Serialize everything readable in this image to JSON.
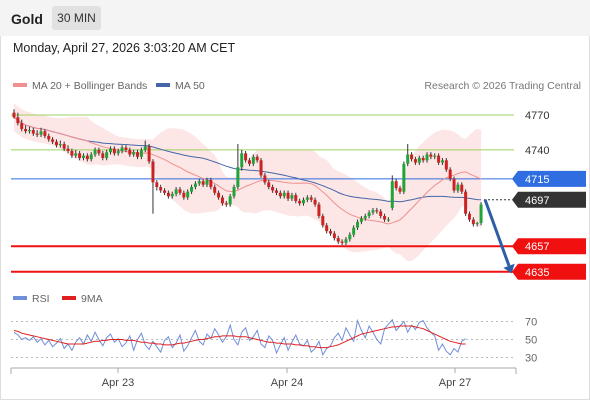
{
  "header": {
    "instrument": "Gold",
    "timeframe": "30 MIN",
    "datetime": "Monday, April 27, 2026 3:03:20 AM CET"
  },
  "legend": {
    "ma20_label": "MA 20 + Bollinger Bands",
    "ma50_label": "MA 50",
    "credit": "Research © 2026 Trading Central",
    "rsi_label": "RSI",
    "rsi9_label": "9MA"
  },
  "colors": {
    "up": "#22a33a",
    "down": "#cc2222",
    "ma20": "#ef8f8f",
    "ma50": "#4466a8",
    "band": "#fde3e3",
    "resistance": "#9fd15f",
    "pivot": "#2f6de0",
    "support": "#f01010",
    "current": "#333333",
    "arrow": "#2d5fa6",
    "rsi": "#6f8fd8",
    "rsi_ma": "#e02020"
  },
  "chart_data": [
    {
      "type": "candlestick",
      "title": "Gold",
      "timeframe": "30 MIN",
      "x_tick_labels": [
        "Apr 23",
        "Apr 24",
        "Apr 27"
      ],
      "y_range": [
        4628,
        4780
      ],
      "price_levels": [
        {
          "label": "4770",
          "value": 4770,
          "kind": "resistance"
        },
        {
          "label": "4740",
          "value": 4740,
          "kind": "resistance"
        },
        {
          "label": "4715",
          "value": 4715,
          "kind": "pivot"
        },
        {
          "label": "4697",
          "value": 4697,
          "kind": "current"
        },
        {
          "label": "4657",
          "value": 4657,
          "kind": "support"
        },
        {
          "label": "4635",
          "value": 4635,
          "kind": "support"
        }
      ],
      "projection": {
        "from": 4697,
        "to": 4635
      },
      "overlays": [
        "MA 20 + Bollinger Bands",
        "MA 50"
      ],
      "close": [
        4768,
        4763,
        4758,
        4756,
        4757,
        4754,
        4753,
        4756,
        4752,
        4749,
        4747,
        4744,
        4745,
        4741,
        4739,
        4735,
        4737,
        4733,
        4735,
        4732,
        4736,
        4740,
        4737,
        4733,
        4738,
        4741,
        4737,
        4739,
        4742,
        4740,
        4736,
        4738,
        4734,
        4740,
        4743,
        4730,
        4712,
        4708,
        4705,
        4703,
        4700,
        4702,
        4706,
        4703,
        4699,
        4704,
        4708,
        4711,
        4713,
        4710,
        4714,
        4708,
        4703,
        4699,
        4694,
        4693,
        4700,
        4708,
        4725,
        4737,
        4731,
        4728,
        4734,
        4731,
        4718,
        4712,
        4708,
        4705,
        4703,
        4700,
        4703,
        4698,
        4701,
        4696,
        4694,
        4697,
        4699,
        4697,
        4693,
        4683,
        4675,
        4670,
        4668,
        4664,
        4661,
        4660,
        4663,
        4667,
        4673,
        4678,
        4681,
        4683,
        4686,
        4688,
        4687,
        4683,
        4680,
        4680,
        4713,
        4707,
        4704,
        4728,
        4736,
        4732,
        4729,
        4733,
        4731,
        4736,
        4734,
        4735,
        4729,
        4731,
        4723,
        4715,
        4705,
        4710,
        4704,
        4685,
        4680,
        4676,
        4677,
        4693
      ],
      "open": [
        4772,
        4768,
        4763,
        4758,
        4756,
        4757,
        4754,
        4753,
        4756,
        4752,
        4749,
        4747,
        4744,
        4745,
        4741,
        4739,
        4735,
        4737,
        4733,
        4735,
        4732,
        4736,
        4740,
        4737,
        4733,
        4738,
        4741,
        4737,
        4739,
        4742,
        4740,
        4736,
        4738,
        4734,
        4740,
        4743,
        4730,
        4712,
        4708,
        4705,
        4703,
        4700,
        4702,
        4706,
        4703,
        4699,
        4704,
        4708,
        4711,
        4713,
        4710,
        4714,
        4708,
        4703,
        4699,
        4694,
        4693,
        4700,
        4708,
        4725,
        4737,
        4731,
        4728,
        4734,
        4731,
        4718,
        4712,
        4708,
        4705,
        4703,
        4700,
        4703,
        4698,
        4701,
        4696,
        4694,
        4697,
        4699,
        4697,
        4693,
        4683,
        4675,
        4670,
        4668,
        4664,
        4661,
        4660,
        4663,
        4667,
        4673,
        4678,
        4681,
        4683,
        4686,
        4688,
        4687,
        4683,
        4680,
        4690,
        4713,
        4707,
        4704,
        4728,
        4736,
        4732,
        4729,
        4733,
        4731,
        4736,
        4734,
        4735,
        4729,
        4731,
        4723,
        4715,
        4705,
        4710,
        4704,
        4685,
        4680,
        4676,
        4677
      ],
      "high": [
        4775,
        4772,
        4766,
        4761,
        4760,
        4759,
        4757,
        4759,
        4758,
        4754,
        4751,
        4749,
        4748,
        4747,
        4744,
        4741,
        4740,
        4739,
        4737,
        4737,
        4738,
        4742,
        4742,
        4739,
        4740,
        4743,
        4743,
        4741,
        4744,
        4744,
        4742,
        4740,
        4740,
        4742,
        4748,
        4745,
        4732,
        4714,
        4710,
        4707,
        4705,
        4704,
        4708,
        4708,
        4705,
        4706,
        4710,
        4713,
        4715,
        4715,
        4716,
        4716,
        4710,
        4705,
        4701,
        4696,
        4702,
        4710,
        4745,
        4740,
        4739,
        4733,
        4736,
        4736,
        4733,
        4720,
        4714,
        4710,
        4707,
        4705,
        4705,
        4705,
        4703,
        4703,
        4698,
        4699,
        4701,
        4701,
        4699,
        4695,
        4685,
        4677,
        4672,
        4670,
        4666,
        4663,
        4665,
        4669,
        4675,
        4680,
        4683,
        4685,
        4688,
        4690,
        4690,
        4689,
        4685,
        4682,
        4718,
        4715,
        4709,
        4730,
        4745,
        4738,
        4734,
        4735,
        4735,
        4738,
        4738,
        4737,
        4737,
        4733,
        4733,
        4725,
        4717,
        4712,
        4712,
        4706,
        4687,
        4682,
        4678,
        4695
      ],
      "low": [
        4767,
        4761,
        4756,
        4754,
        4754,
        4752,
        4751,
        4751,
        4750,
        4747,
        4745,
        4742,
        4742,
        4739,
        4737,
        4733,
        4733,
        4731,
        4731,
        4730,
        4730,
        4734,
        4735,
        4731,
        4731,
        4736,
        4735,
        4735,
        4737,
        4738,
        4734,
        4734,
        4732,
        4732,
        4738,
        4728,
        4685,
        4705,
        4703,
        4701,
        4698,
        4698,
        4700,
        4701,
        4697,
        4697,
        4702,
        4706,
        4709,
        4708,
        4708,
        4706,
        4701,
        4697,
        4692,
        4691,
        4691,
        4698,
        4706,
        4722,
        4729,
        4726,
        4726,
        4729,
        4716,
        4710,
        4706,
        4703,
        4701,
        4698,
        4698,
        4696,
        4696,
        4694,
        4692,
        4692,
        4695,
        4695,
        4691,
        4681,
        4673,
        4668,
        4666,
        4662,
        4659,
        4658,
        4658,
        4661,
        4665,
        4671,
        4676,
        4679,
        4681,
        4684,
        4685,
        4681,
        4678,
        4678,
        4688,
        4705,
        4702,
        4702,
        4726,
        4730,
        4727,
        4727,
        4729,
        4729,
        4732,
        4732,
        4727,
        4727,
        4721,
        4713,
        4703,
        4703,
        4702,
        4683,
        4678,
        4674,
        4674,
        4675
      ]
    },
    {
      "type": "line",
      "title": "RSI",
      "y_tick_labels": [
        "70",
        "50",
        "30"
      ],
      "y_range": [
        20,
        80
      ],
      "x_tick_labels": [
        "Apr 23",
        "Apr 24",
        "Apr 27"
      ],
      "series": [
        {
          "name": "RSI",
          "values": [
            58,
            55,
            50,
            52,
            49,
            53,
            47,
            51,
            44,
            49,
            42,
            46,
            51,
            40,
            45,
            38,
            47,
            52,
            45,
            55,
            48,
            58,
            50,
            43,
            52,
            56,
            47,
            51,
            42,
            46,
            54,
            38,
            50,
            57,
            44,
            39,
            48,
            42,
            36,
            49,
            53,
            41,
            46,
            55,
            37,
            43,
            52,
            60,
            48,
            44,
            56,
            51,
            62,
            55,
            47,
            53,
            66,
            50,
            44,
            58,
            63,
            49,
            53,
            60,
            45,
            41,
            54,
            49,
            35,
            44,
            52,
            38,
            47,
            55,
            45,
            43,
            49,
            36,
            40,
            48,
            33,
            40,
            43,
            52,
            57,
            49,
            63,
            55,
            48,
            71,
            60,
            52,
            65,
            58,
            50,
            45,
            62,
            67,
            72,
            60,
            65,
            70,
            58,
            66,
            61,
            69,
            71,
            63,
            58,
            54,
            38,
            45,
            37,
            33,
            40,
            36,
            48,
            51
          ]
        },
        {
          "name": "9MA",
          "values": [
            60,
            59,
            57,
            56,
            55,
            54,
            53,
            52,
            51,
            50,
            49,
            48,
            47,
            46,
            45,
            45,
            45,
            45,
            45,
            46,
            47,
            48,
            48,
            49,
            49,
            50,
            50,
            50,
            50,
            49,
            49,
            49,
            48,
            47,
            47,
            46,
            46,
            45,
            45,
            44,
            44,
            44,
            45,
            46,
            46,
            47,
            48,
            49,
            50,
            50,
            51,
            52,
            53,
            53,
            54,
            54,
            54,
            54,
            53,
            53,
            53,
            52,
            51,
            50,
            49,
            48,
            47,
            47,
            46,
            46,
            45,
            45,
            45,
            44,
            44,
            43,
            43,
            42,
            42,
            41,
            41,
            41,
            42,
            43,
            44,
            46,
            48,
            50,
            52,
            54,
            56,
            57,
            58,
            59,
            60,
            61,
            62,
            63,
            64,
            64,
            65,
            65,
            65,
            65,
            64,
            63,
            62,
            60,
            58,
            56,
            54,
            52,
            50,
            48,
            47,
            46,
            45,
            45
          ]
        }
      ]
    }
  ]
}
